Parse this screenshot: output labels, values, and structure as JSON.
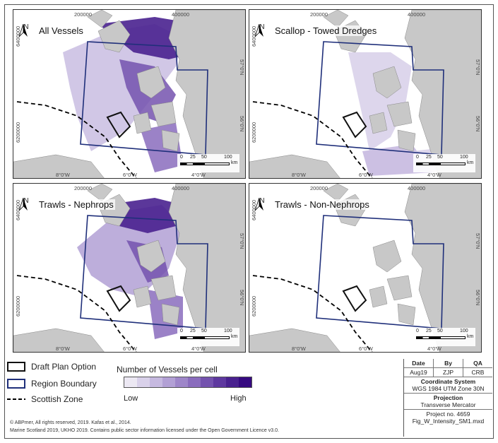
{
  "panels": [
    {
      "title": "All Vessels",
      "variant": "all"
    },
    {
      "title": "Scallop - Towed Dredges",
      "variant": "scallop"
    },
    {
      "title": "Trawls - Nephrops",
      "variant": "nephrops"
    },
    {
      "title": "Trawls - Non-Nephrops",
      "variant": "non"
    }
  ],
  "axis_ticks": {
    "eastings": [
      "200000",
      "400000"
    ],
    "northings": [
      "6400000",
      "6200000"
    ],
    "longitudes": [
      "8°0'W",
      "6°0'W",
      "4°0'W"
    ],
    "latitudes": [
      "57°0'N",
      "56°0'N"
    ]
  },
  "north_arrow": {
    "label": "N",
    "icon": "north-arrow-icon"
  },
  "scale_bar": {
    "ticks": [
      "0",
      "25",
      "50",
      "100"
    ],
    "unit": "km"
  },
  "legend": {
    "draft_plan": "Draft Plan Option",
    "region_boundary": "Region Boundary",
    "scottish_zone": "Scottish Zone",
    "ramp_title": "Number of Vessels per cell",
    "ramp_low": "Low",
    "ramp_high": "High",
    "ramp_colors": [
      "#ece8f3",
      "#d9d1ea",
      "#c6b9e0",
      "#b2a0d5",
      "#9e86c9",
      "#8a6cbd",
      "#7452ae",
      "#5e389f",
      "#49218f",
      "#360a80"
    ]
  },
  "colors": {
    "land": "#c8c8c8",
    "sea": "#ffffff",
    "boundary": "#1f2f7a",
    "draft": "#111111"
  },
  "credits": {
    "line1": "© ABPmer, All rights reserved, 2019.  Kafas et al., 2014.",
    "line2": "Marine Scotland 2019, UKHO 2019. Contains public sector information licensed under the Open Government Licence v3.0."
  },
  "info": {
    "date_hdr": "Date",
    "by_hdr": "By",
    "qa_hdr": "QA",
    "date": "Aug19",
    "by": "ZJP",
    "qa": "CRB",
    "coord_hdr": "Coordinate System",
    "coord": "WGS 1984 UTM Zone 30N",
    "proj_hdr": "Projection",
    "proj": "Transverse Mercator",
    "project": "Project no. 4659",
    "file": "Fig_W_Intensity_SM1.mxd"
  }
}
